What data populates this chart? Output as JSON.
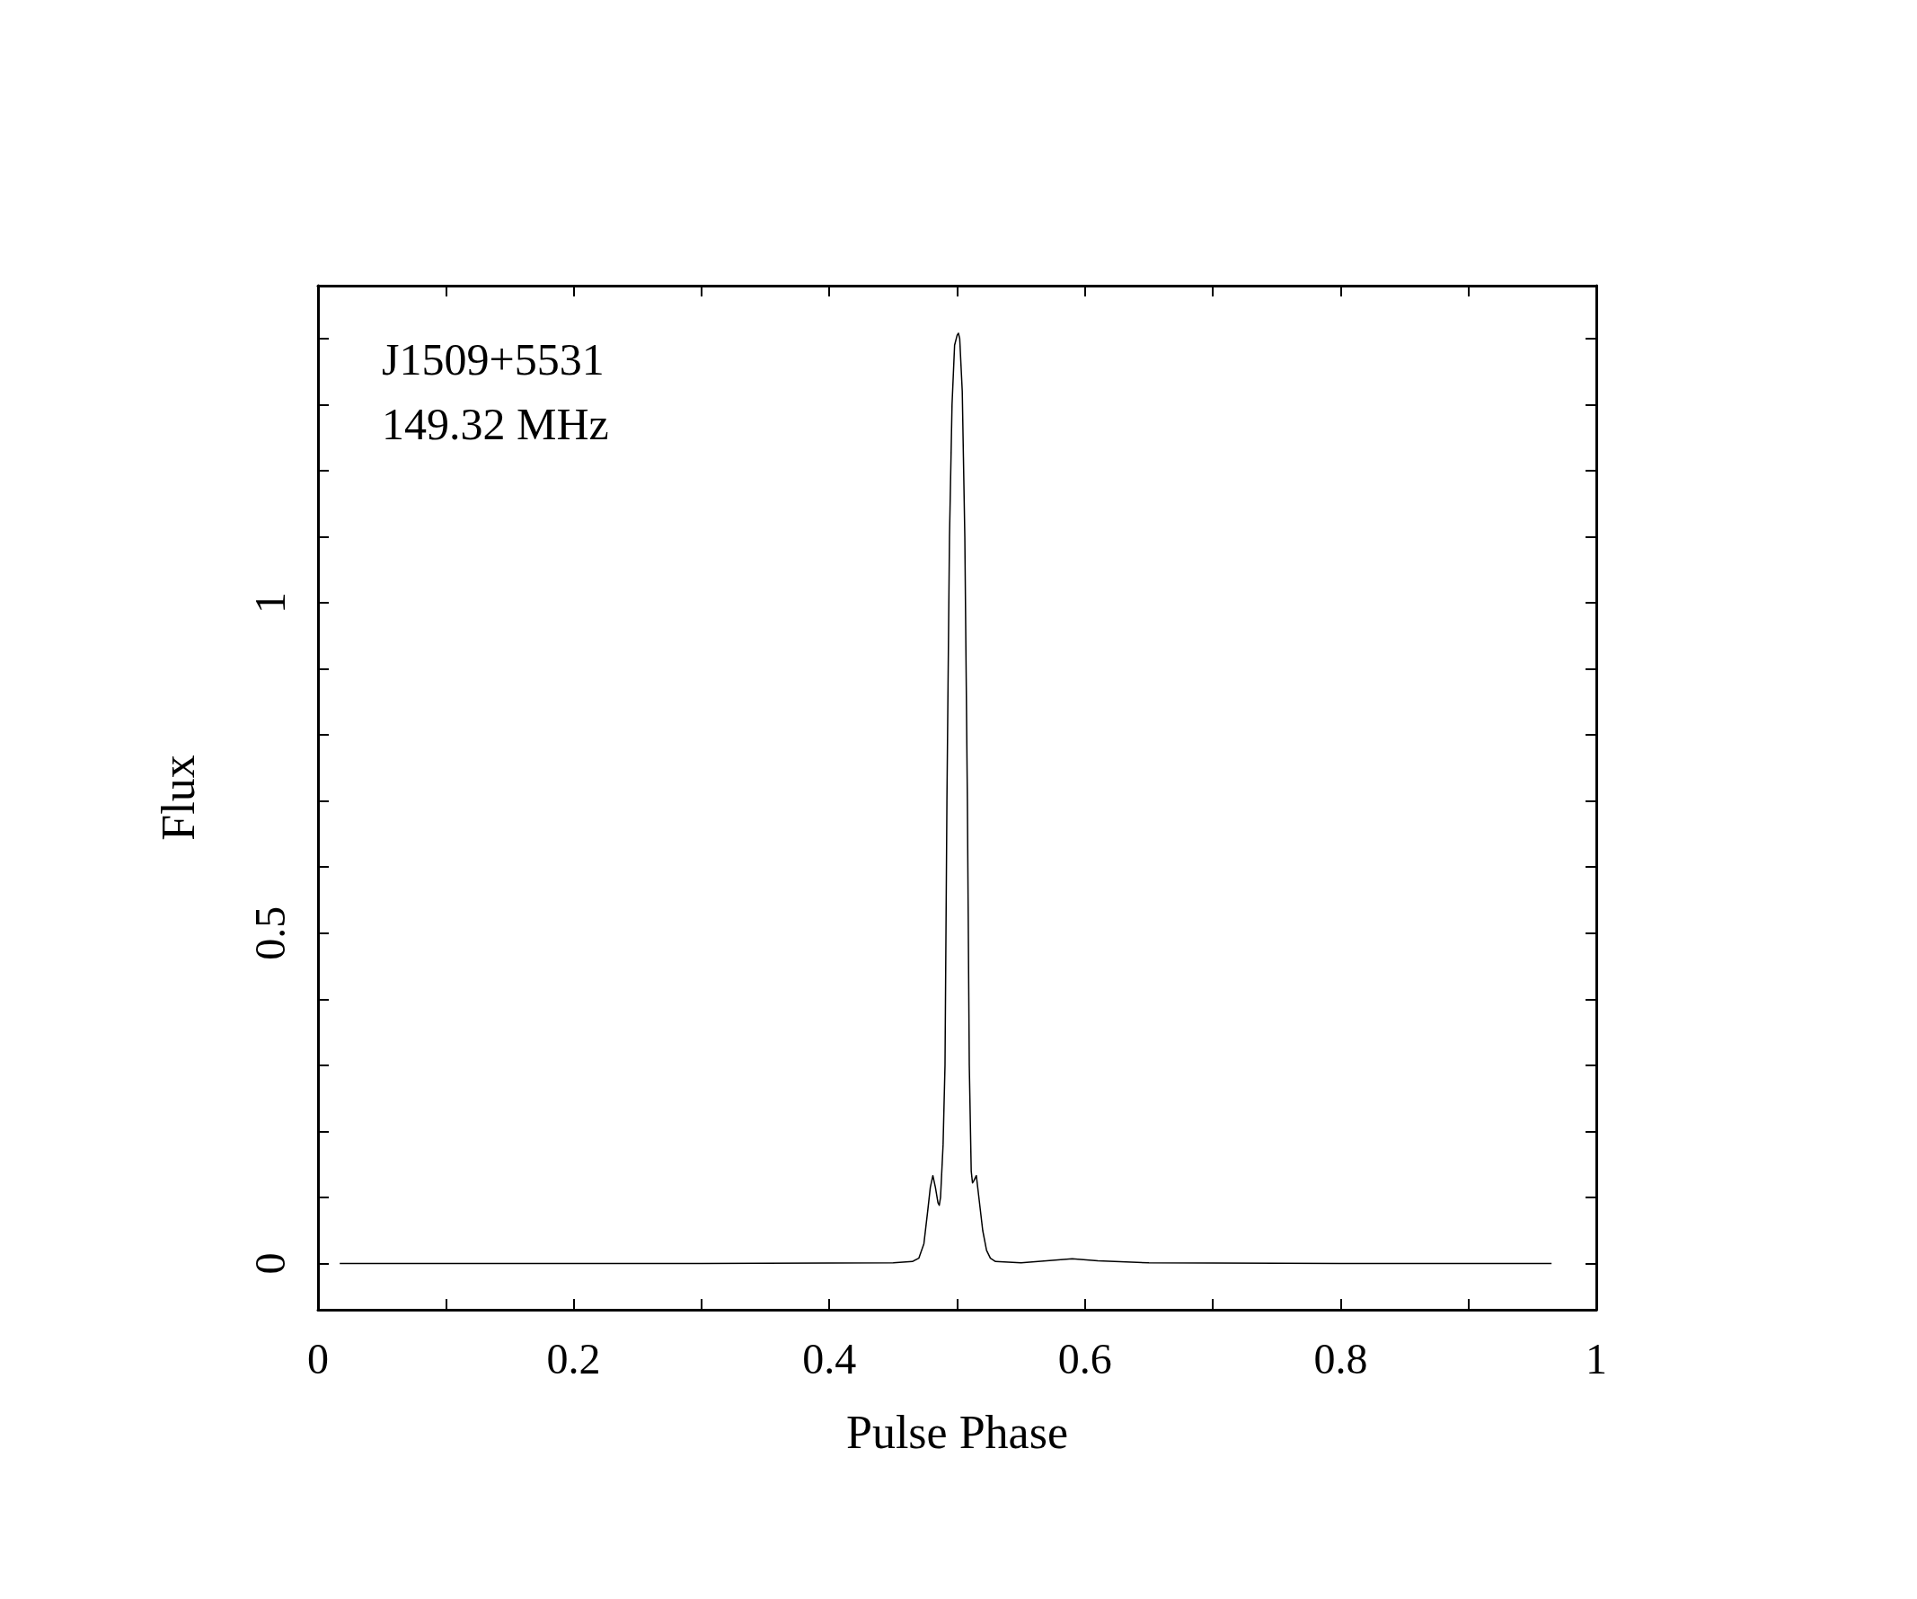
{
  "chart_data": {
    "type": "line",
    "xlabel": "Pulse Phase",
    "ylabel": "Flux",
    "annotations": [
      "J1509+5531",
      "149.32 MHz"
    ],
    "x": [
      0.017,
      0.3,
      0.45,
      0.465,
      0.47,
      0.474,
      0.477,
      0.479,
      0.481,
      0.483,
      0.485,
      0.486,
      0.487,
      0.489,
      0.4905,
      0.492,
      0.494,
      0.496,
      0.498,
      0.5,
      0.501,
      0.502,
      0.504,
      0.506,
      0.508,
      0.5095,
      0.511,
      0.512,
      0.513,
      0.515,
      0.517,
      0.52,
      0.523,
      0.526,
      0.53,
      0.55,
      0.57,
      0.59,
      0.61,
      0.65,
      0.8,
      0.965
    ],
    "series": [
      {
        "color": "#000000",
        "values": [
          0,
          0,
          0.001,
          0.003,
          0.008,
          0.03,
          0.08,
          0.115,
          0.133,
          0.115,
          0.092,
          0.088,
          0.1,
          0.18,
          0.3,
          0.7,
          1.1,
          1.3,
          1.39,
          1.405,
          1.408,
          1.4,
          1.32,
          1.1,
          0.7,
          0.3,
          0.14,
          0.122,
          0.125,
          0.133,
          0.1,
          0.05,
          0.02,
          0.008,
          0.003,
          0.001,
          0.004,
          0.007,
          0.004,
          0.001,
          0,
          0
        ]
      }
    ],
    "xlim": [
      0,
      1
    ],
    "ylim": [
      -0.07,
      1.48
    ],
    "xticks": [
      0,
      {
        "value": 0.1,
        "label": null
      },
      0.2,
      {
        "value": 0.3,
        "label": null
      },
      0.4,
      {
        "value": 0.5,
        "label": null
      },
      0.6,
      {
        "value": 0.7,
        "label": null
      },
      0.8,
      {
        "value": 0.9,
        "label": null
      },
      1
    ],
    "yticks": [
      0,
      {
        "value": 0.1,
        "label": null
      },
      {
        "value": 0.2,
        "label": null
      },
      {
        "value": 0.3,
        "label": null
      },
      {
        "value": 0.4,
        "label": null
      },
      0.5,
      {
        "value": 0.6,
        "label": null
      },
      {
        "value": 0.7,
        "label": null
      },
      {
        "value": 0.8,
        "label": null
      },
      {
        "value": 0.9,
        "label": null
      },
      1,
      {
        "value": 1.1,
        "label": null
      },
      {
        "value": 1.2,
        "label": null
      },
      {
        "value": 1.3,
        "label": null
      },
      {
        "value": 1.4,
        "label": null
      }
    ],
    "grid": false,
    "marker": "none",
    "line_style": "solid"
  }
}
